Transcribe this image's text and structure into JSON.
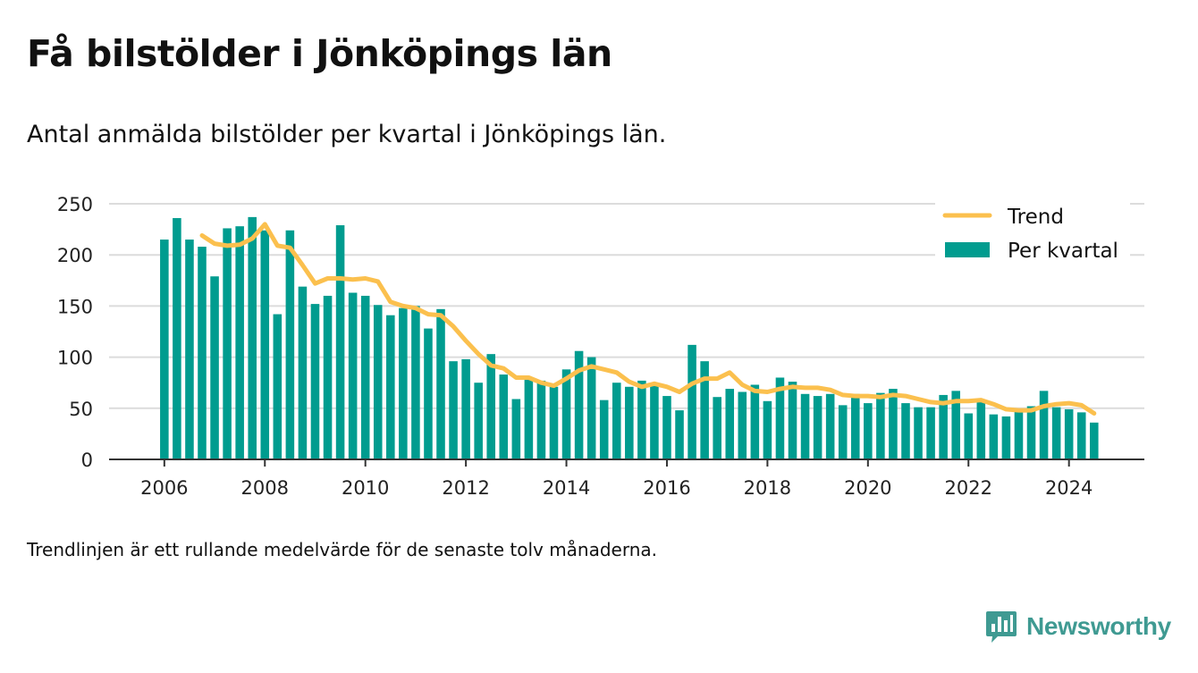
{
  "title": "Få bilstölder i Jönköpings län",
  "subtitle": "Antal anmälda bilstölder per kvartal i Jönköpings län.",
  "note": "Trendlinjen är ett rullande medelvärde för de senaste tolv månaderna.",
  "brand": {
    "name": "Newsworthy",
    "icon": "newsworthy-logo-icon",
    "color": "#3f9a92"
  },
  "chart_data": {
    "type": "bar",
    "x_start": 2006.0,
    "x_step": 0.25,
    "xlim": [
      2004.9,
      2025.5
    ],
    "ylim": [
      0,
      250
    ],
    "yticks": [
      "0",
      "50",
      "100",
      "150",
      "200",
      "250"
    ],
    "xticks": [
      "2006",
      "2008",
      "2010",
      "2012",
      "2014",
      "2016",
      "2018",
      "2020",
      "2022",
      "2024"
    ],
    "grid": true,
    "legend_position": "top-right",
    "bar_color": "#009c8f",
    "trend_color": "#fbc04e",
    "series": [
      {
        "name": "Per kvartal",
        "type": "bar",
        "values": [
          215,
          236,
          215,
          208,
          179,
          226,
          228,
          237,
          224,
          142,
          224,
          169,
          152,
          160,
          229,
          163,
          160,
          151,
          141,
          148,
          150,
          128,
          147,
          96,
          98,
          75,
          103,
          83,
          59,
          80,
          77,
          71,
          88,
          106,
          100,
          58,
          75,
          71,
          77,
          73,
          62,
          48,
          112,
          96,
          61,
          69,
          66,
          73,
          57,
          80,
          76,
          64,
          62,
          64,
          53,
          64,
          55,
          65,
          69,
          55,
          51,
          51,
          63,
          67,
          45,
          56,
          44,
          42,
          47,
          52,
          67,
          51,
          49,
          46,
          36
        ]
      },
      {
        "name": "Trend",
        "type": "line",
        "x_start": 2006.75,
        "values": [
          219,
          211,
          209,
          210,
          216,
          230,
          209,
          207,
          190,
          172,
          177,
          177,
          176,
          177,
          174,
          154,
          150,
          148,
          142,
          141,
          130,
          116,
          103,
          92,
          89,
          80,
          80,
          75,
          72,
          79,
          87,
          91,
          88,
          85,
          76,
          71,
          74,
          71,
          66,
          74,
          79,
          79,
          85,
          73,
          67,
          66,
          69,
          71,
          70,
          70,
          68,
          63,
          62,
          62,
          61,
          63,
          62,
          59,
          56,
          55,
          57,
          57,
          58,
          54,
          49,
          48,
          48,
          52,
          54,
          55,
          53,
          45
        ]
      }
    ]
  }
}
